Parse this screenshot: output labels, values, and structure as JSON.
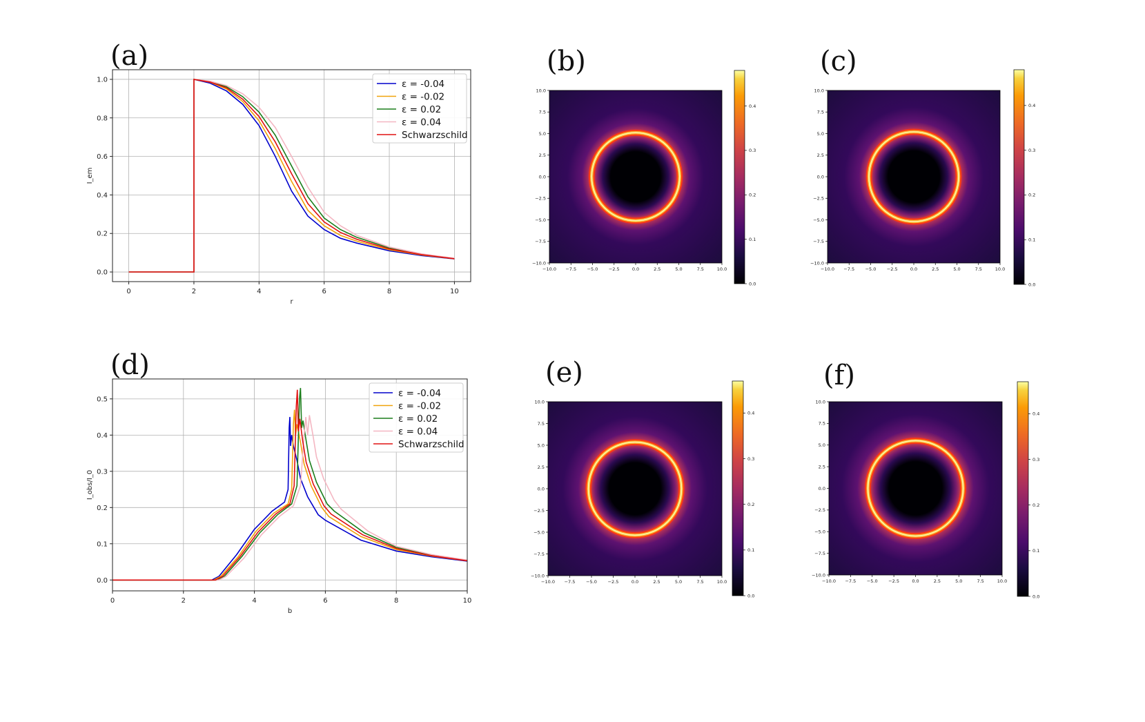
{
  "figure": {
    "colors": {
      "axis": "#222222",
      "grid": "#b0b0b0",
      "legendBorder": "#cccccc"
    }
  },
  "chart_data": [
    {
      "id": "a",
      "panel_label": "(a)",
      "type": "line",
      "xlabel": "r",
      "ylabel": "I_em",
      "xlim": [
        -0.5,
        10.5
      ],
      "ylim": [
        -0.05,
        1.05
      ],
      "xticks": [
        "0",
        "2",
        "4",
        "6",
        "8",
        "10"
      ],
      "xtick_values": [
        0,
        2,
        4,
        6,
        8,
        10
      ],
      "yticks": [
        "0.0",
        "0.2",
        "0.4",
        "0.6",
        "0.8",
        "1.0"
      ],
      "ytick_values": [
        0.0,
        0.2,
        0.4,
        0.6,
        0.8,
        1.0
      ],
      "legend_position": "top-right",
      "series": [
        {
          "name": "ε = -0.04",
          "color": "#0000cc",
          "x": [
            0,
            2,
            2,
            2.5,
            3,
            3.5,
            4,
            4.5,
            5,
            5.5,
            6,
            6.5,
            7,
            8,
            9,
            10
          ],
          "y": [
            0,
            0,
            1.0,
            0.98,
            0.94,
            0.87,
            0.76,
            0.6,
            0.42,
            0.29,
            0.22,
            0.175,
            0.15,
            0.11,
            0.085,
            0.068
          ]
        },
        {
          "name": "ε = -0.02",
          "color": "#f0a30a",
          "x": [
            0,
            2,
            2,
            2.5,
            3,
            3.5,
            4,
            4.5,
            5,
            5.5,
            6,
            6.5,
            7,
            8,
            9,
            10
          ],
          "y": [
            0,
            0,
            1.0,
            0.985,
            0.95,
            0.885,
            0.785,
            0.64,
            0.47,
            0.32,
            0.24,
            0.19,
            0.16,
            0.115,
            0.088,
            0.069
          ]
        },
        {
          "name": "ε = 0.02",
          "color": "#1a7d1a",
          "x": [
            0,
            2,
            2,
            2.5,
            3,
            3.5,
            4,
            4.5,
            5,
            5.5,
            6,
            6.5,
            7,
            8,
            9,
            10
          ],
          "y": [
            0,
            0,
            1.0,
            0.988,
            0.962,
            0.91,
            0.83,
            0.71,
            0.55,
            0.39,
            0.28,
            0.22,
            0.18,
            0.125,
            0.092,
            0.07
          ]
        },
        {
          "name": "ε = 0.04",
          "color": "#f4b6c2",
          "x": [
            0,
            2,
            2,
            2.5,
            3,
            3.5,
            4,
            4.5,
            5,
            5.5,
            6,
            6.5,
            7,
            8,
            9,
            10
          ],
          "y": [
            0,
            0,
            1.0,
            0.99,
            0.968,
            0.925,
            0.855,
            0.75,
            0.6,
            0.44,
            0.31,
            0.24,
            0.19,
            0.13,
            0.094,
            0.071
          ]
        },
        {
          "name": "Schwarzschild",
          "color": "#e01010",
          "x": [
            0,
            2,
            2,
            2.5,
            3,
            3.5,
            4,
            4.5,
            5,
            5.5,
            6,
            6.5,
            7,
            8,
            9,
            10
          ],
          "y": [
            0,
            0,
            1.0,
            0.986,
            0.956,
            0.897,
            0.807,
            0.675,
            0.51,
            0.355,
            0.26,
            0.205,
            0.17,
            0.12,
            0.09,
            0.069
          ]
        }
      ]
    },
    {
      "id": "b",
      "panel_label": "(b)",
      "type": "heatmap",
      "xticks": [
        "−10.0",
        "−7.5",
        "−5.0",
        "−2.5",
        "0.0",
        "2.5",
        "5.0",
        "7.5",
        "10.0"
      ],
      "yticks": [
        "10.0",
        "7.5",
        "5.0",
        "2.5",
        "0.0",
        "−2.5",
        "−5.0",
        "−7.5",
        "−10.0"
      ],
      "colorbar_ticks": [
        "0.4",
        "0.3",
        "0.2",
        "0.1",
        "0.0"
      ],
      "colorbar_max": 0.48,
      "ring_radius": 5.1,
      "shadow_radius": 3.4
    },
    {
      "id": "c",
      "panel_label": "(c)",
      "type": "heatmap",
      "xticks": [
        "−10.0",
        "−7.5",
        "−5.0",
        "−2.5",
        "0.0",
        "2.5",
        "5.0",
        "7.5",
        "10.0"
      ],
      "yticks": [
        "10.0",
        "7.5",
        "5.0",
        "2.5",
        "0.0",
        "−2.5",
        "−5.0",
        "−7.5",
        "−10.0"
      ],
      "colorbar_ticks": [
        "0.4",
        "0.3",
        "0.2",
        "0.1",
        "0.0"
      ],
      "colorbar_max": 0.48,
      "ring_radius": 5.2,
      "shadow_radius": 3.5
    },
    {
      "id": "d",
      "panel_label": "(d)",
      "type": "line",
      "xlabel": "b",
      "ylabel": "I_obs/I_0",
      "xlim": [
        0,
        10
      ],
      "ylim": [
        -0.03,
        0.555
      ],
      "xticks": [
        "0",
        "2",
        "4",
        "6",
        "8",
        "10"
      ],
      "xtick_values": [
        0,
        2,
        4,
        6,
        8,
        10
      ],
      "yticks": [
        "0.0",
        "0.1",
        "0.2",
        "0.3",
        "0.4",
        "0.5"
      ],
      "ytick_values": [
        0.0,
        0.1,
        0.2,
        0.3,
        0.4,
        0.5
      ],
      "legend_position": "top-right",
      "series": [
        {
          "name": "ε = -0.04",
          "color": "#0000cc",
          "x": [
            0,
            2.8,
            3.0,
            3.5,
            4.0,
            4.5,
            4.85,
            4.95,
            4.98,
            5.0,
            5.02,
            5.05,
            5.1,
            5.2,
            5.3,
            5.5,
            5.8,
            6.0,
            7.0,
            8.0,
            9.0,
            10.0
          ],
          "y": [
            0,
            0,
            0.01,
            0.07,
            0.14,
            0.19,
            0.215,
            0.25,
            0.42,
            0.45,
            0.37,
            0.4,
            0.37,
            0.33,
            0.28,
            0.23,
            0.18,
            0.165,
            0.11,
            0.08,
            0.064,
            0.052
          ]
        },
        {
          "name": "ε = -0.02",
          "color": "#f0a30a",
          "x": [
            0,
            2.85,
            3.05,
            3.55,
            4.05,
            4.55,
            4.95,
            5.05,
            5.1,
            5.13,
            5.16,
            5.2,
            5.3,
            5.4,
            5.6,
            5.9,
            6.1,
            7.0,
            8.0,
            9.0,
            10.0
          ],
          "y": [
            0,
            0,
            0.01,
            0.065,
            0.135,
            0.185,
            0.21,
            0.25,
            0.43,
            0.47,
            0.4,
            0.43,
            0.38,
            0.32,
            0.26,
            0.2,
            0.175,
            0.12,
            0.084,
            0.066,
            0.053
          ]
        },
        {
          "name": "ε = 0.02",
          "color": "#1a7d1a",
          "x": [
            0,
            2.95,
            3.15,
            3.65,
            4.15,
            4.65,
            5.05,
            5.2,
            5.27,
            5.3,
            5.33,
            5.37,
            5.45,
            5.55,
            5.75,
            6.05,
            6.25,
            7.1,
            8.0,
            9.0,
            10.0
          ],
          "y": [
            0,
            0,
            0.01,
            0.065,
            0.13,
            0.18,
            0.21,
            0.26,
            0.5,
            0.53,
            0.42,
            0.44,
            0.39,
            0.33,
            0.27,
            0.21,
            0.19,
            0.13,
            0.09,
            0.069,
            0.054
          ]
        },
        {
          "name": "ε = 0.04",
          "color": "#f4b6c2",
          "x": [
            0,
            3.0,
            3.2,
            3.7,
            4.2,
            4.7,
            5.1,
            5.3,
            5.4,
            5.45,
            5.5,
            5.55,
            5.65,
            5.75,
            5.95,
            6.25,
            6.45,
            7.2,
            8.0,
            9.0,
            10.0
          ],
          "y": [
            0,
            0,
            0.01,
            0.06,
            0.125,
            0.175,
            0.205,
            0.26,
            0.4,
            0.45,
            0.4,
            0.455,
            0.4,
            0.34,
            0.28,
            0.22,
            0.195,
            0.135,
            0.093,
            0.07,
            0.055
          ]
        },
        {
          "name": "Schwarzschild",
          "color": "#e01010",
          "x": [
            0,
            2.9,
            3.1,
            3.6,
            4.1,
            4.6,
            5.0,
            5.12,
            5.18,
            5.21,
            5.24,
            5.28,
            5.36,
            5.46,
            5.66,
            5.96,
            6.16,
            7.05,
            8.0,
            9.0,
            10.0
          ],
          "y": [
            0,
            0,
            0.01,
            0.065,
            0.132,
            0.182,
            0.21,
            0.26,
            0.48,
            0.525,
            0.41,
            0.445,
            0.385,
            0.325,
            0.265,
            0.205,
            0.182,
            0.125,
            0.087,
            0.067,
            0.053
          ]
        }
      ]
    },
    {
      "id": "e",
      "panel_label": "(e)",
      "type": "heatmap",
      "xticks": [
        "−10.0",
        "−7.5",
        "−5.0",
        "−2.5",
        "0.0",
        "2.5",
        "5.0",
        "7.5",
        "10.0"
      ],
      "yticks": [
        "10.0",
        "7.5",
        "5.0",
        "2.5",
        "0.0",
        "−2.5",
        "−5.0",
        "−7.5",
        "−10.0"
      ],
      "colorbar_ticks": [
        "0.4",
        "0.3",
        "0.2",
        "0.1",
        "0.0"
      ],
      "colorbar_max": 0.47,
      "ring_radius": 5.35,
      "shadow_radius": 3.5
    },
    {
      "id": "f",
      "panel_label": "(f)",
      "type": "heatmap",
      "xticks": [
        "−10.0",
        "−7.5",
        "−5.0",
        "−2.5",
        "0.0",
        "2.5",
        "5.0",
        "7.5",
        "10.0"
      ],
      "yticks": [
        "10.0",
        "7.5",
        "5.0",
        "2.5",
        "0.0",
        "−2.5",
        "−5.0",
        "−7.5",
        "−10.0"
      ],
      "colorbar_ticks": [
        "0.4",
        "0.3",
        "0.2",
        "0.1",
        "0.0"
      ],
      "colorbar_max": 0.47,
      "ring_radius": 5.5,
      "shadow_radius": 3.6
    }
  ]
}
